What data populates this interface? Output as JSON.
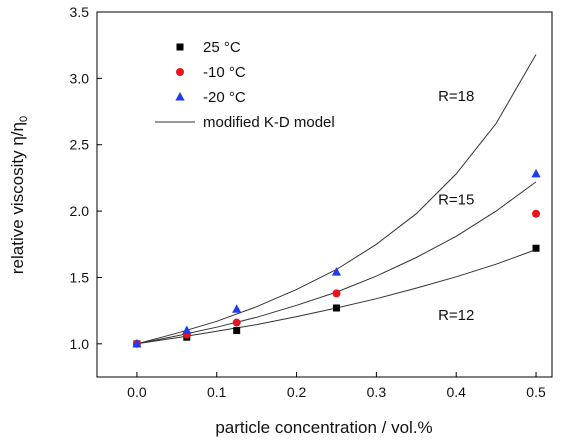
{
  "chart_data": {
    "type": "scatter",
    "xlabel": "particle concentration / vol.%",
    "ylabel_main": "relative viscosity η/η",
    "ylabel_sub": "0",
    "xlim": [
      -0.05,
      0.52
    ],
    "ylim": [
      0.75,
      3.5
    ],
    "xticks": [
      0.0,
      0.1,
      0.2,
      0.3,
      0.4,
      0.5
    ],
    "xtick_labels": [
      "0.0",
      "0.1",
      "0.2",
      "0.3",
      "0.4",
      "0.5"
    ],
    "yticks": [
      1.0,
      1.5,
      2.0,
      2.5,
      3.0,
      3.5
    ],
    "ytick_labels": [
      "1.0",
      "1.5",
      "2.0",
      "2.5",
      "3.0",
      "3.5"
    ],
    "legend_position": "top-left",
    "series": [
      {
        "name": "25 °C",
        "marker": "square",
        "color": "#000000",
        "x": [
          0.0,
          0.0625,
          0.125,
          0.25,
          0.5
        ],
        "y": [
          1.0,
          1.05,
          1.1,
          1.27,
          1.72
        ]
      },
      {
        "name": "-10 °C",
        "marker": "circle",
        "color": "#e8141e",
        "x": [
          0.0,
          0.0625,
          0.125,
          0.25,
          0.5
        ],
        "y": [
          1.0,
          1.07,
          1.16,
          1.38,
          1.98
        ]
      },
      {
        "name": "-20 °C",
        "marker": "triangle",
        "color": "#1c3cf0",
        "x": [
          0.0,
          0.0625,
          0.125,
          0.25,
          0.5
        ],
        "y": [
          1.0,
          1.1,
          1.26,
          1.54,
          2.28
        ]
      }
    ],
    "model": {
      "name": "modified K-D model",
      "curves": [
        {
          "label": "R=12",
          "x": [
            0.0,
            0.05,
            0.1,
            0.15,
            0.2,
            0.25,
            0.3,
            0.35,
            0.4,
            0.45,
            0.5
          ],
          "y": [
            1.0,
            1.045,
            1.095,
            1.145,
            1.205,
            1.27,
            1.34,
            1.42,
            1.505,
            1.6,
            1.71
          ]
        },
        {
          "label": "R=15",
          "x": [
            0.0,
            0.05,
            0.1,
            0.15,
            0.2,
            0.25,
            0.3,
            0.35,
            0.4,
            0.45,
            0.5
          ],
          "y": [
            1.0,
            1.06,
            1.125,
            1.2,
            1.29,
            1.39,
            1.51,
            1.65,
            1.81,
            2.0,
            2.22
          ]
        },
        {
          "label": "R=18",
          "x": [
            0.0,
            0.05,
            0.1,
            0.15,
            0.2,
            0.25,
            0.3,
            0.35,
            0.4,
            0.45,
            0.5
          ],
          "y": [
            1.0,
            1.08,
            1.17,
            1.28,
            1.41,
            1.56,
            1.75,
            1.98,
            2.28,
            2.66,
            3.18
          ]
        }
      ],
      "label_positions": [
        {
          "label": "R=12",
          "x": 0.4,
          "y": 1.18
        },
        {
          "label": "R=15",
          "x": 0.4,
          "y": 2.05
        },
        {
          "label": "R=18",
          "x": 0.4,
          "y": 2.83
        }
      ]
    }
  }
}
